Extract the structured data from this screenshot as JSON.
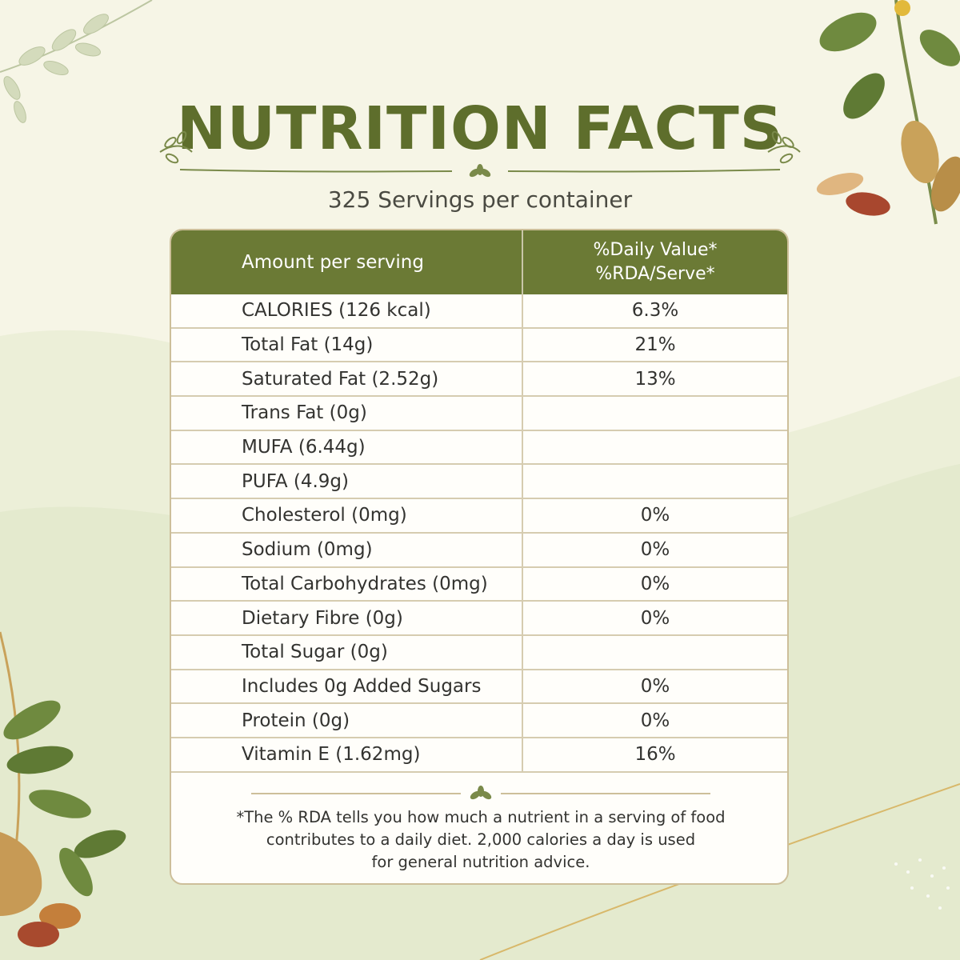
{
  "title": "NUTRITION FACTS",
  "servings": "325 Servings per container",
  "table": {
    "header_left": "Amount per serving",
    "header_right_line1": "%Daily Value*",
    "header_right_line2": "%RDA/Serve*",
    "rows": [
      {
        "label": "CALORIES (126 kcal)",
        "value": "6.3%"
      },
      {
        "label": "Total Fat (14g)",
        "value": "21%"
      },
      {
        "label": "Saturated Fat (2.52g)",
        "value": "13%"
      },
      {
        "label": "Trans Fat (0g)",
        "value": ""
      },
      {
        "label": "MUFA (6.44g)",
        "value": ""
      },
      {
        "label": "PUFA (4.9g)",
        "value": ""
      },
      {
        "label": "Cholesterol (0mg)",
        "value": "0%"
      },
      {
        "label": "Sodium (0mg)",
        "value": "0%"
      },
      {
        "label": "Total Carbohydrates (0mg)",
        "value": "0%"
      },
      {
        "label": "Dietary Fibre (0g)",
        "value": "0%"
      },
      {
        "label": "Total Sugar (0g)",
        "value": ""
      },
      {
        "label": "Includes 0g Added Sugars",
        "value": "0%"
      },
      {
        "label": "Protein (0g)",
        "value": "0%"
      },
      {
        "label": "Vitamin E (1.62mg)",
        "value": "16%"
      }
    ]
  },
  "footnote": {
    "line1": "*The % RDA tells you how much a nutrient in a serving of food",
    "line2": "contributes to a daily diet. 2,000 calories a day is used",
    "line3": "for general nutrition advice."
  },
  "colors": {
    "accent_green": "#6b7a35",
    "title_green": "#5e6e2c",
    "background": "#f6f5e6",
    "border_tan": "#cdbf9a"
  },
  "decor": [
    "leaf-branch-icon",
    "peanut-plant-icon",
    "peanut-basket-icon",
    "peanut-icon"
  ]
}
